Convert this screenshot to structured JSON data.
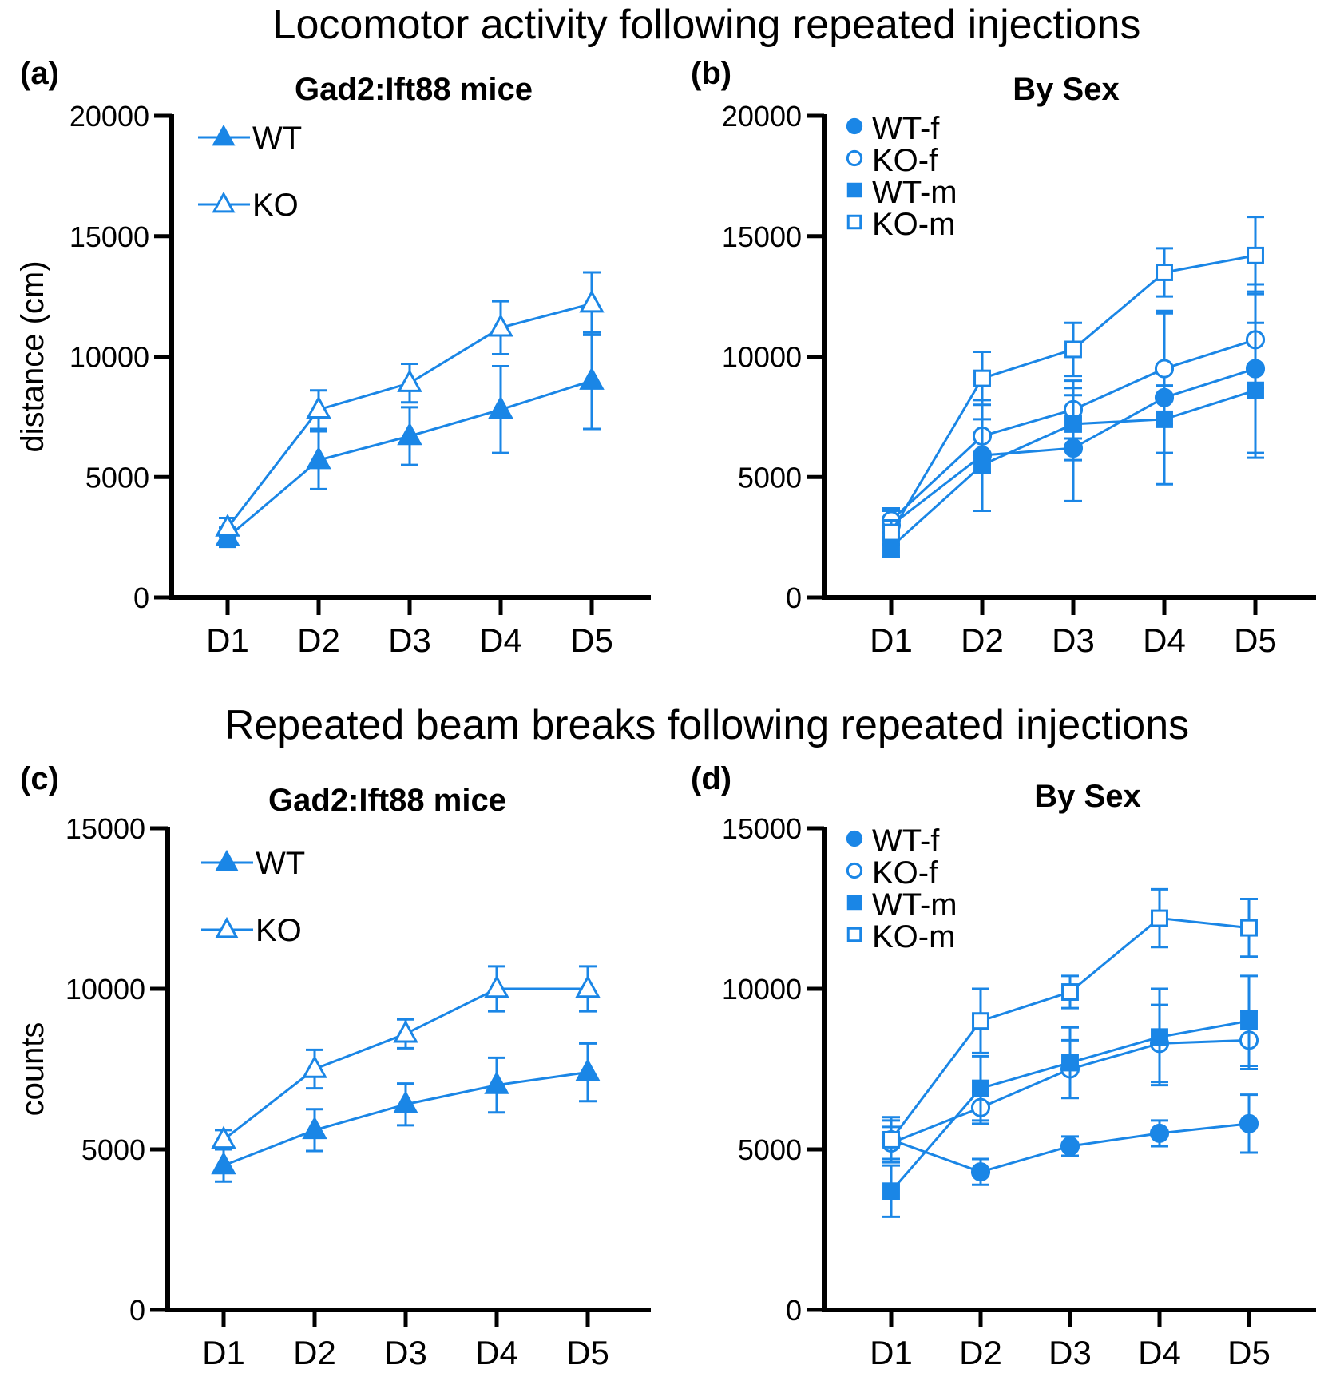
{
  "figure": {
    "color": "#1a86e6",
    "section_titles": [
      "Locomotor activity following repeated injections",
      "Repeated beam breaks following repeated injections"
    ]
  },
  "chart_data": [
    {
      "panel": "(a)",
      "type": "line",
      "title": "Gad2:Ift88 mice",
      "ylabel": "distance (cm)",
      "xlabel": "",
      "categories": [
        "D1",
        "D2",
        "D3",
        "D4",
        "D5"
      ],
      "ylim": [
        0,
        20000
      ],
      "yticks": [
        0,
        5000,
        10000,
        15000,
        20000
      ],
      "legend": "top-left",
      "series": [
        {
          "name": "WT",
          "marker": "triangle-filled",
          "values": [
            2500,
            5700,
            6700,
            7800,
            9000
          ],
          "errors": [
            400,
            1200,
            1200,
            1800,
            2000
          ]
        },
        {
          "name": "KO",
          "marker": "triangle-open",
          "values": [
            2900,
            7800,
            8900,
            11200,
            12200
          ],
          "errors": [
            400,
            800,
            800,
            1100,
            1300
          ]
        }
      ]
    },
    {
      "panel": "(b)",
      "type": "line",
      "title": "By Sex",
      "ylabel": "",
      "xlabel": "",
      "categories": [
        "D1",
        "D2",
        "D3",
        "D4",
        "D5"
      ],
      "ylim": [
        0,
        20000
      ],
      "yticks": [
        0,
        5000,
        10000,
        15000,
        20000
      ],
      "legend": "top-left",
      "series": [
        {
          "name": "WT-f",
          "marker": "circle-filled",
          "values": [
            3000,
            5900,
            6200,
            8300,
            9500
          ],
          "errors": [
            600,
            2300,
            2200,
            3600,
            3500
          ]
        },
        {
          "name": "KO-f",
          "marker": "circle-open",
          "values": [
            3200,
            6700,
            7800,
            9500,
            10700
          ],
          "errors": [
            500,
            1500,
            1200,
            2300,
            2000
          ]
        },
        {
          "name": "WT-m",
          "marker": "square-filled",
          "values": [
            2100,
            5500,
            7200,
            7400,
            8600
          ],
          "errors": [
            400,
            1900,
            1500,
            1400,
            2800
          ]
        },
        {
          "name": "KO-m",
          "marker": "square-open",
          "values": [
            2700,
            9100,
            10300,
            13500,
            14200
          ],
          "errors": [
            500,
            1100,
            1100,
            1000,
            1600
          ]
        }
      ]
    },
    {
      "panel": "(c)",
      "type": "line",
      "title": "Gad2:Ift88 mice",
      "ylabel": "counts",
      "xlabel": "",
      "categories": [
        "D1",
        "D2",
        "D3",
        "D4",
        "D5"
      ],
      "ylim": [
        0,
        15000
      ],
      "yticks": [
        0,
        5000,
        10000,
        15000
      ],
      "legend": "top-left",
      "series": [
        {
          "name": "WT",
          "marker": "triangle-filled",
          "values": [
            4500,
            5600,
            6400,
            7000,
            7400
          ],
          "errors": [
            500,
            650,
            650,
            850,
            900
          ]
        },
        {
          "name": "KO",
          "marker": "triangle-open",
          "values": [
            5300,
            7500,
            8600,
            10000,
            10000
          ],
          "errors": [
            300,
            600,
            450,
            700,
            700
          ]
        }
      ]
    },
    {
      "panel": "(d)",
      "type": "line",
      "title": "By Sex",
      "ylabel": "",
      "xlabel": "",
      "categories": [
        "D1",
        "D2",
        "D3",
        "D4",
        "D5"
      ],
      "ylim": [
        0,
        15000
      ],
      "yticks": [
        0,
        5000,
        10000,
        15000
      ],
      "legend": "top-left",
      "series": [
        {
          "name": "WT-f",
          "marker": "circle-filled",
          "values": [
            5300,
            4300,
            5100,
            5500,
            5800
          ],
          "errors": [
            700,
            400,
            300,
            400,
            900
          ]
        },
        {
          "name": "KO-f",
          "marker": "circle-open",
          "values": [
            5200,
            6300,
            7500,
            8300,
            8400
          ],
          "errors": [
            500,
            500,
            900,
            1200,
            900
          ]
        },
        {
          "name": "WT-m",
          "marker": "square-filled",
          "values": [
            3700,
            6900,
            7700,
            8500,
            9000
          ],
          "errors": [
            800,
            1000,
            1100,
            1500,
            1400
          ]
        },
        {
          "name": "KO-m",
          "marker": "square-open",
          "values": [
            5300,
            9000,
            9900,
            12200,
            11900
          ],
          "errors": [
            600,
            1000,
            500,
            900,
            900
          ]
        }
      ]
    }
  ]
}
